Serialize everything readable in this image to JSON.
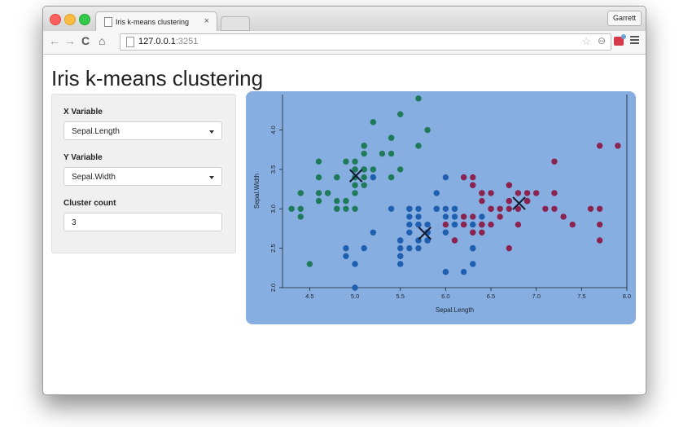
{
  "browser": {
    "tab_title": "Iris k-means clustering",
    "tab_close": "×",
    "profile_name": "Garrett",
    "url_host": "127.0.0.1",
    "url_port": ":3251",
    "nav_back": "←",
    "nav_forward": "→",
    "nav_reload": "C",
    "nav_home": "⌂",
    "star": "☆",
    "zoom": "⊖"
  },
  "page": {
    "title": "Iris k-means clustering"
  },
  "sidebar": {
    "x_label": "X Variable",
    "x_value": "Sepal.Length",
    "y_label": "Y Variable",
    "y_value": "Sepal.Width",
    "cluster_label": "Cluster count",
    "cluster_value": "3"
  },
  "colors": {
    "plot_background": "#87aee0",
    "cluster_1": "#1f7a5a",
    "cluster_2": "#1e5fb0",
    "cluster_3": "#8b2350",
    "center": "#111a2e"
  },
  "chart_data": {
    "type": "scatter",
    "xlabel": "Sepal.Length",
    "ylabel": "Sepal.Width",
    "xlim": [
      4.2,
      8.0
    ],
    "ylim": [
      2.0,
      4.45
    ],
    "x_ticks": [
      4.5,
      5.0,
      5.5,
      6.0,
      6.5,
      7.0,
      7.5,
      8.0
    ],
    "y_ticks": [
      2.0,
      2.5,
      3.0,
      3.5,
      4.0
    ],
    "grid": false,
    "legend": "none",
    "series": [
      {
        "color": "#1f7a5a",
        "points": [
          [
            5.1,
            3.5
          ],
          [
            4.9,
            3.0
          ],
          [
            4.7,
            3.2
          ],
          [
            4.6,
            3.1
          ],
          [
            5.0,
            3.6
          ],
          [
            5.4,
            3.9
          ],
          [
            4.6,
            3.4
          ],
          [
            5.0,
            3.4
          ],
          [
            4.4,
            2.9
          ],
          [
            4.9,
            3.1
          ],
          [
            5.4,
            3.7
          ],
          [
            4.8,
            3.4
          ],
          [
            4.8,
            3.0
          ],
          [
            4.3,
            3.0
          ],
          [
            5.8,
            4.0
          ],
          [
            5.7,
            4.4
          ],
          [
            5.4,
            3.9
          ],
          [
            5.1,
            3.5
          ],
          [
            5.7,
            3.8
          ],
          [
            5.1,
            3.8
          ],
          [
            5.4,
            3.4
          ],
          [
            5.1,
            3.7
          ],
          [
            4.6,
            3.6
          ],
          [
            5.1,
            3.3
          ],
          [
            4.8,
            3.4
          ],
          [
            5.0,
            3.0
          ],
          [
            5.0,
            3.4
          ],
          [
            5.2,
            3.5
          ],
          [
            5.2,
            3.4
          ],
          [
            4.7,
            3.2
          ],
          [
            4.8,
            3.1
          ],
          [
            5.4,
            3.4
          ],
          [
            5.2,
            4.1
          ],
          [
            5.5,
            4.2
          ],
          [
            4.9,
            3.1
          ],
          [
            5.0,
            3.2
          ],
          [
            5.5,
            3.5
          ],
          [
            4.9,
            3.6
          ],
          [
            4.4,
            3.0
          ],
          [
            5.1,
            3.4
          ],
          [
            5.0,
            3.5
          ],
          [
            4.5,
            2.3
          ],
          [
            4.4,
            3.2
          ],
          [
            5.0,
            3.5
          ],
          [
            5.1,
            3.8
          ],
          [
            4.8,
            3.0
          ],
          [
            5.1,
            3.8
          ],
          [
            4.6,
            3.2
          ],
          [
            5.3,
            3.7
          ],
          [
            5.0,
            3.3
          ]
        ]
      },
      {
        "color": "#1e5fb0",
        "points": [
          [
            5.5,
            2.3
          ],
          [
            5.7,
            2.8
          ],
          [
            4.9,
            2.4
          ],
          [
            5.2,
            2.7
          ],
          [
            5.0,
            2.0
          ],
          [
            5.9,
            3.0
          ],
          [
            6.0,
            2.2
          ],
          [
            6.1,
            2.9
          ],
          [
            5.6,
            2.9
          ],
          [
            5.6,
            3.0
          ],
          [
            5.8,
            2.7
          ],
          [
            6.2,
            2.2
          ],
          [
            5.6,
            2.5
          ],
          [
            5.9,
            3.2
          ],
          [
            6.1,
            2.8
          ],
          [
            6.4,
            2.9
          ],
          [
            6.0,
            2.9
          ],
          [
            5.7,
            2.6
          ],
          [
            5.5,
            2.4
          ],
          [
            5.5,
            2.4
          ],
          [
            5.8,
            2.7
          ],
          [
            6.0,
            2.7
          ],
          [
            5.4,
            3.0
          ],
          [
            6.0,
            3.4
          ],
          [
            6.3,
            2.3
          ],
          [
            5.6,
            3.0
          ],
          [
            5.5,
            2.5
          ],
          [
            5.5,
            2.6
          ],
          [
            6.1,
            3.0
          ],
          [
            5.8,
            2.6
          ],
          [
            5.0,
            2.3
          ],
          [
            5.6,
            2.7
          ],
          [
            5.7,
            3.0
          ],
          [
            5.7,
            2.9
          ],
          [
            6.2,
            2.9
          ],
          [
            5.1,
            2.5
          ],
          [
            5.7,
            2.8
          ],
          [
            5.8,
            2.7
          ],
          [
            4.9,
            2.5
          ],
          [
            5.7,
            2.5
          ],
          [
            5.8,
            2.8
          ],
          [
            6.0,
            2.2
          ],
          [
            5.6,
            2.8
          ],
          [
            6.3,
            2.5
          ],
          [
            6.3,
            2.8
          ],
          [
            6.1,
            2.6
          ],
          [
            6.4,
            2.8
          ],
          [
            6.3,
            2.7
          ],
          [
            6.0,
            3.0
          ],
          [
            5.8,
            2.7
          ],
          [
            5.9,
            3.0
          ],
          [
            6.2,
            3.4
          ],
          [
            6.1,
            2.8
          ],
          [
            6.3,
            2.5
          ],
          [
            6.3,
            3.3
          ],
          [
            5.8,
            2.6
          ],
          [
            6.1,
            3.0
          ],
          [
            5.5,
            2.6
          ],
          [
            5.7,
            2.6
          ],
          [
            6.4,
            2.8
          ],
          [
            5.2,
            3.4
          ]
        ]
      },
      {
        "color": "#8b2350",
        "points": [
          [
            7.0,
            3.2
          ],
          [
            6.4,
            3.2
          ],
          [
            6.9,
            3.1
          ],
          [
            6.5,
            2.8
          ],
          [
            6.3,
            3.3
          ],
          [
            6.6,
            2.9
          ],
          [
            6.7,
            3.1
          ],
          [
            6.2,
            2.8
          ],
          [
            6.6,
            3.0
          ],
          [
            6.8,
            2.8
          ],
          [
            6.7,
            3.0
          ],
          [
            6.3,
            2.9
          ],
          [
            6.9,
            3.1
          ],
          [
            6.7,
            3.1
          ],
          [
            6.4,
            3.2
          ],
          [
            6.5,
            3.0
          ],
          [
            7.1,
            3.0
          ],
          [
            7.6,
            3.0
          ],
          [
            7.3,
            2.9
          ],
          [
            6.7,
            2.5
          ],
          [
            7.2,
            3.6
          ],
          [
            6.4,
            2.7
          ],
          [
            6.8,
            3.0
          ],
          [
            6.5,
            3.2
          ],
          [
            7.7,
            3.8
          ],
          [
            7.7,
            2.6
          ],
          [
            6.9,
            3.2
          ],
          [
            7.7,
            2.8
          ],
          [
            6.7,
            3.3
          ],
          [
            7.2,
            3.2
          ],
          [
            6.2,
            2.8
          ],
          [
            6.4,
            2.8
          ],
          [
            7.2,
            3.0
          ],
          [
            7.4,
            2.8
          ],
          [
            7.9,
            3.8
          ],
          [
            6.4,
            2.8
          ],
          [
            6.1,
            2.6
          ],
          [
            7.7,
            3.0
          ],
          [
            6.3,
            3.4
          ],
          [
            6.4,
            3.1
          ],
          [
            6.9,
            3.1
          ],
          [
            6.7,
            3.1
          ],
          [
            6.9,
            3.1
          ],
          [
            6.8,
            3.2
          ],
          [
            6.7,
            3.3
          ],
          [
            6.5,
            3.0
          ],
          [
            6.2,
            3.4
          ],
          [
            6.0,
            2.8
          ],
          [
            6.2,
            2.9
          ],
          [
            6.3,
            2.7
          ]
        ]
      }
    ],
    "centers": [
      [
        5.01,
        3.42
      ],
      [
        5.77,
        2.69
      ],
      [
        6.81,
        3.07
      ]
    ]
  }
}
